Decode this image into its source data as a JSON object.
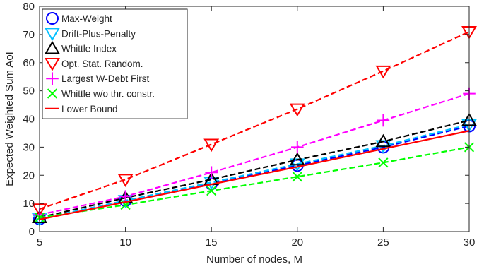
{
  "chart_data": {
    "type": "line",
    "xlabel": "Number of nodes, M",
    "ylabel": "Expected Weighted Sum AoI",
    "xlim": [
      5,
      30
    ],
    "ylim": [
      0,
      80
    ],
    "xticks": [
      5,
      10,
      15,
      20,
      25,
      30
    ],
    "yticks": [
      0,
      10,
      20,
      30,
      40,
      50,
      60,
      70,
      80
    ],
    "grid": false,
    "legend_position": "top-left",
    "x": [
      5,
      10,
      15,
      20,
      25,
      30
    ],
    "series": [
      {
        "name": "Max-Weight",
        "color": "#0000ff",
        "marker": "circle",
        "linestyle": "dashed",
        "values": [
          4.5,
          11,
          17,
          23.5,
          30,
          37.5
        ]
      },
      {
        "name": "Drift-Plus-Penalty",
        "color": "#00bfff",
        "marker": "triangle-down",
        "linestyle": "dashed",
        "values": [
          4.5,
          11,
          17.5,
          24,
          30.5,
          38
        ]
      },
      {
        "name": "Whittle Index",
        "color": "#000000",
        "marker": "triangle-up",
        "linestyle": "dashed",
        "values": [
          5,
          12,
          18.5,
          25.5,
          32,
          39.5
        ]
      },
      {
        "name": "Opt. Stat. Random.",
        "color": "#ff0000",
        "marker": "triangle-down",
        "linestyle": "dashed",
        "values": [
          8,
          18.5,
          31,
          43.5,
          57,
          71
        ]
      },
      {
        "name": "Largest W-Debt First",
        "color": "#ff00ff",
        "marker": "plus",
        "linestyle": "dashed",
        "values": [
          6,
          12.5,
          21,
          30,
          39.5,
          49
        ]
      },
      {
        "name": "Whittle w/o thr. constr.",
        "color": "#00ff00",
        "marker": "x",
        "linestyle": "dashed",
        "values": [
          5,
          9.5,
          14.5,
          19.5,
          24.5,
          30
        ]
      },
      {
        "name": "Lower Bound",
        "color": "#ff0000",
        "marker": "none",
        "linestyle": "solid",
        "values": [
          4.3,
          10.5,
          16.8,
          23,
          29.4,
          35.8
        ]
      }
    ]
  }
}
